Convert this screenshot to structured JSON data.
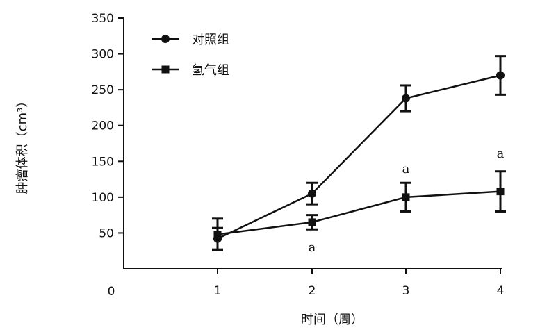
{
  "chart_data": {
    "type": "line",
    "title": "",
    "xlabel": "时间（周）",
    "ylabel": "肿瘤体积（cm³）",
    "x": [
      1,
      2,
      3,
      4
    ],
    "x_ticks": [
      1,
      2,
      3,
      4
    ],
    "origin_label": "0",
    "xlim": [
      0,
      4
    ],
    "ylim": [
      0,
      350
    ],
    "y_ticks": [
      50,
      100,
      150,
      200,
      250,
      300,
      350
    ],
    "grid": false,
    "legend_position": "top-left",
    "series": [
      {
        "name": "对照组",
        "marker": "circle",
        "color": "#111111",
        "values": [
          42,
          105,
          238,
          270
        ],
        "error": [
          15,
          15,
          18,
          27
        ]
      },
      {
        "name": "氢气组",
        "marker": "square",
        "color": "#111111",
        "values": [
          48,
          65,
          100,
          108
        ],
        "error": [
          22,
          10,
          20,
          28
        ]
      }
    ],
    "annotations": [
      {
        "text": "a",
        "x": 2,
        "y": 24
      },
      {
        "text": "a",
        "x": 3,
        "y": 134
      },
      {
        "text": "a",
        "x": 4,
        "y": 155
      }
    ]
  }
}
